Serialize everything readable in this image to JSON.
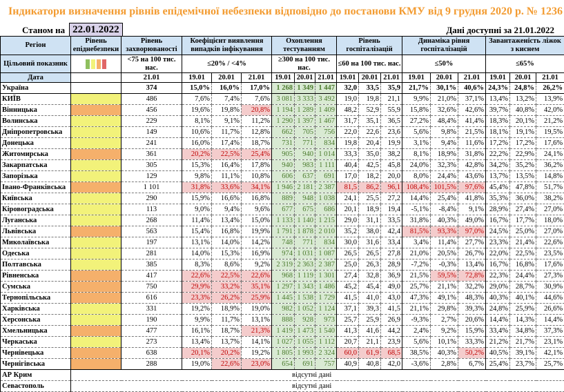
{
  "title": "Індикатори визначення рівнів епідемічної небезпеки відповідно до постанови КМУ від 9 грудня 2020 р. № 1236",
  "as_of_label": "Станом на",
  "as_of_date": "22.01.2022",
  "available_label": "Дані доступні за 21.01.2022",
  "headers": {
    "region": "Регіон",
    "level": "Рівень епіднебезпеки",
    "incidence": "Рівень захворюваності",
    "coef": "Коефіцієнт виявлення випадків інфікування",
    "testing": "Охоплення тестуванням",
    "hosp": "Рівень госпіталізацій",
    "dyn": "Динаміка рівня госпіталізацій",
    "beds": "Завантаженість ліжок з киснем"
  },
  "targets": {
    "label": "Цільовий показник",
    "incidence": "<75 на 100 тис. нас.",
    "coef": "≤20% / <4%",
    "testing": "≥300 на 100 тис. нас.",
    "hosp": "≤60 на 100 тис. нас.",
    "dyn": "≤50%",
    "beds": "≤65%"
  },
  "date_row": {
    "label": "Дата",
    "d_inc": "21.01",
    "dates": [
      "19.01",
      "20.01",
      "21.01"
    ]
  },
  "level_colors": {
    "green": "#8fbf5f",
    "yellow": "#f2f27a",
    "orange": "#f5b06b",
    "red": "#e06666"
  },
  "rows": [
    {
      "n": "Україна",
      "l": "",
      "v": [
        "374",
        "15,0%",
        "16,0%",
        "17,0%",
        "1 268",
        "1 349",
        "1 447",
        "32,0",
        "33,5",
        "35,9",
        "21,7%",
        "30,1%",
        "40,6%",
        "24,3%",
        "24,8%",
        "26,2%"
      ],
      "h": []
    },
    {
      "n": "КИЇВ",
      "l": "yellow",
      "v": [
        "486",
        "7,6%",
        "7,4%",
        "7,6%",
        "3 081",
        "3 333",
        "3 492",
        "19,0",
        "19,8",
        "21,1",
        "9,9%",
        "21,0%",
        "37,1%",
        "13,4%",
        "13,2%",
        "13,9%"
      ],
      "h": []
    },
    {
      "n": "Вінницька",
      "l": "orange",
      "v": [
        "456",
        "19,6%",
        "19,8%",
        "20,8%",
        "1 194",
        "1 289",
        "1 409",
        "48,2",
        "52,9",
        "55,9",
        "15,8%",
        "32,6%",
        "42,6%",
        "39,7%",
        "40,8%",
        "42,0%"
      ],
      "h": [
        3
      ]
    },
    {
      "n": "Волинська",
      "l": "yellow",
      "v": [
        "229",
        "8,1%",
        "9,1%",
        "11,2%",
        "1 290",
        "1 397",
        "1 467",
        "31,7",
        "35,1",
        "36,5",
        "27,2%",
        "48,4%",
        "41,4%",
        "18,3%",
        "20,1%",
        "21,2%"
      ],
      "h": []
    },
    {
      "n": "Дніпропетровська",
      "l": "yellow",
      "v": [
        "149",
        "10,6%",
        "11,7%",
        "12,8%",
        "662",
        "705",
        "756",
        "22,0",
        "22,6",
        "23,6",
        "5,6%",
        "9,8%",
        "21,5%",
        "18,1%",
        "19,1%",
        "19,5%"
      ],
      "h": []
    },
    {
      "n": "Донецька",
      "l": "yellow",
      "v": [
        "241",
        "16,0%",
        "17,4%",
        "18,7%",
        "731",
        "771",
        "834",
        "19,8",
        "20,4",
        "19,9",
        "3,1%",
        "9,4%",
        "11,6%",
        "17,2%",
        "17,2%",
        "17,6%"
      ],
      "h": []
    },
    {
      "n": "Житомирська",
      "l": "orange",
      "v": [
        "361",
        "20,2%",
        "22,5%",
        "25,4%",
        "905",
        "940",
        "1 014",
        "33,3",
        "35,0",
        "38,2",
        "8,1%",
        "18,9%",
        "31,8%",
        "22,2%",
        "22,9%",
        "24,1%"
      ],
      "h": [
        1,
        2,
        3
      ]
    },
    {
      "n": "Закарпатська",
      "l": "yellow",
      "v": [
        "305",
        "15,3%",
        "16,4%",
        "17,8%",
        "940",
        "983",
        "1 111",
        "40,4",
        "42,5",
        "45,8",
        "24,0%",
        "32,3%",
        "42,8%",
        "34,2%",
        "35,2%",
        "36,2%"
      ],
      "h": []
    },
    {
      "n": "Запорізька",
      "l": "yellow",
      "v": [
        "129",
        "9,8%",
        "11,1%",
        "10,8%",
        "606",
        "637",
        "691",
        "17,0",
        "18,2",
        "20,0",
        "8,0%",
        "24,4%",
        "43,6%",
        "13,7%",
        "13,5%",
        "14,8%"
      ],
      "h": []
    },
    {
      "n": "Івано-Франківська",
      "l": "orange",
      "v": [
        "1 101",
        "31,8%",
        "33,6%",
        "34,1%",
        "1 946",
        "2 181",
        "2 387",
        "81,5",
        "86,2",
        "96,1",
        "108,4%",
        "101,5%",
        "97,6%",
        "45,4%",
        "47,8%",
        "51,7%"
      ],
      "h": [
        1,
        2,
        3,
        7,
        8,
        9,
        10,
        11,
        12
      ]
    },
    {
      "n": "Київська",
      "l": "yellow",
      "v": [
        "290",
        "15,9%",
        "16,6%",
        "16,8%",
        "889",
        "948",
        "1 038",
        "24,1",
        "25,5",
        "27,2",
        "14,4%",
        "25,4%",
        "41,8%",
        "35,3%",
        "36,0%",
        "38,2%"
      ],
      "h": []
    },
    {
      "n": "Кіровоградська",
      "l": "yellow",
      "v": [
        "113",
        "9,0%",
        "9,4%",
        "9,6%",
        "677",
        "675",
        "686",
        "20,1",
        "18,9",
        "19,4",
        "-5,1%",
        "-8,4%",
        "9,1%",
        "28,9%",
        "27,4%",
        "27,0%"
      ],
      "h": []
    },
    {
      "n": "Луганська",
      "l": "yellow",
      "v": [
        "268",
        "11,4%",
        "13,4%",
        "15,0%",
        "1 133",
        "1 140",
        "1 215",
        "29,0",
        "31,1",
        "33,5",
        "31,8%",
        "40,3%",
        "49,0%",
        "16,7%",
        "17,7%",
        "18,0%"
      ],
      "h": []
    },
    {
      "n": "Львівська",
      "l": "orange",
      "v": [
        "563",
        "15,4%",
        "16,8%",
        "19,9%",
        "1 791",
        "1 878",
        "2 010",
        "35,2",
        "38,0",
        "42,4",
        "81,5%",
        "93,3%",
        "97,0%",
        "24,5%",
        "25,0%",
        "27,0%"
      ],
      "h": [
        10,
        11,
        12
      ]
    },
    {
      "n": "Миколаївська",
      "l": "yellow",
      "v": [
        "197",
        "13,1%",
        "14,0%",
        "14,2%",
        "748",
        "771",
        "834",
        "30,0",
        "31,6",
        "33,4",
        "3,4%",
        "11,4%",
        "27,7%",
        "23,3%",
        "21,4%",
        "22,6%"
      ],
      "h": []
    },
    {
      "n": "Одеська",
      "l": "yellow",
      "v": [
        "281",
        "14,0%",
        "15,3%",
        "16,9%",
        "974",
        "1 031",
        "1 087",
        "26,5",
        "26,5",
        "27,8",
        "21,0%",
        "20,5%",
        "26,7%",
        "22,0%",
        "22,5%",
        "23,5%"
      ],
      "h": []
    },
    {
      "n": "Полтавська",
      "l": "yellow",
      "v": [
        "385",
        "8,3%",
        "8,6%",
        "9,2%",
        "2 319",
        "2 363",
        "2 387",
        "25,0",
        "26,3",
        "28,9",
        "-7,2%",
        "-0,3%",
        "13,4%",
        "16,7%",
        "16,8%",
        "17,6%"
      ],
      "h": []
    },
    {
      "n": "Рівненська",
      "l": "orange",
      "v": [
        "417",
        "22,6%",
        "22,5%",
        "22,6%",
        "968",
        "1 119",
        "1 301",
        "27,4",
        "32,8",
        "36,9",
        "21,5%",
        "59,5%",
        "72,8%",
        "22,3%",
        "24,4%",
        "27,3%"
      ],
      "h": [
        1,
        2,
        3,
        11,
        12
      ]
    },
    {
      "n": "Сумська",
      "l": "orange",
      "v": [
        "750",
        "29,9%",
        "33,2%",
        "35,1%",
        "1 297",
        "1 343",
        "1 486",
        "45,2",
        "45,4",
        "49,0",
        "25,7%",
        "21,1%",
        "32,2%",
        "29,0%",
        "28,7%",
        "30,9%"
      ],
      "h": [
        1,
        2,
        3
      ]
    },
    {
      "n": "Тернопільська",
      "l": "orange",
      "v": [
        "616",
        "23,3%",
        "26,2%",
        "25,9%",
        "1 445",
        "1 538",
        "1 729",
        "41,5",
        "41,0",
        "43,0",
        "47,3%",
        "49,1%",
        "48,3%",
        "40,3%",
        "40,1%",
        "44,6%"
      ],
      "h": [
        1,
        2,
        3
      ]
    },
    {
      "n": "Харківська",
      "l": "yellow",
      "v": [
        "331",
        "19,2%",
        "18,9%",
        "19,0%",
        "982",
        "1 052",
        "1 124",
        "37,1",
        "39,3",
        "41,5",
        "21,1%",
        "29,8%",
        "39,3%",
        "24,8%",
        "25,9%",
        "26,6%"
      ],
      "h": []
    },
    {
      "n": "Херсонська",
      "l": "yellow",
      "v": [
        "190",
        "9,9%",
        "11,7%",
        "13,1%",
        "888",
        "928",
        "973",
        "25,7",
        "25,9",
        "26,9",
        "-9,3%",
        "2,7%",
        "20,6%",
        "14,4%",
        "14,3%",
        "14,4%"
      ],
      "h": []
    },
    {
      "n": "Хмельницька",
      "l": "orange",
      "v": [
        "477",
        "16,1%",
        "18,7%",
        "21,3%",
        "1 419",
        "1 473",
        "1 540",
        "41,3",
        "41,6",
        "44,2",
        "2,4%",
        "9,2%",
        "15,9%",
        "33,4%",
        "34,8%",
        "37,3%"
      ],
      "h": [
        3
      ]
    },
    {
      "n": "Черкаська",
      "l": "yellow",
      "v": [
        "273",
        "13,4%",
        "13,7%",
        "14,1%",
        "1 027",
        "1 055",
        "1 112",
        "20,7",
        "21,1",
        "23,9",
        "5,6%",
        "10,1%",
        "33,3%",
        "21,2%",
        "21,7%",
        "23,1%"
      ],
      "h": []
    },
    {
      "n": "Чернівецька",
      "l": "orange",
      "v": [
        "638",
        "20,1%",
        "20,2%",
        "19,2%",
        "1 805",
        "1 993",
        "2 324",
        "60,0",
        "61,9",
        "68,5",
        "38,5%",
        "40,3%",
        "50,2%",
        "40,5%",
        "39,1%",
        "42,1%"
      ],
      "h": [
        1,
        2,
        7,
        8,
        9,
        12
      ]
    },
    {
      "n": "Чернігівська",
      "l": "orange",
      "v": [
        "288",
        "19,0%",
        "22,6%",
        "23,0%",
        "654",
        "691",
        "757",
        "40,9",
        "40,8",
        "42,0",
        "-3,6%",
        "2,8%",
        "6,7%",
        "25,4%",
        "23,7%",
        "25,7%"
      ],
      "h": [
        2,
        3
      ]
    }
  ],
  "missing": [
    {
      "n": "АР Крим",
      "text": "відсутні дані"
    },
    {
      "n": "Севастополь",
      "text": "відсутні дані"
    }
  ]
}
